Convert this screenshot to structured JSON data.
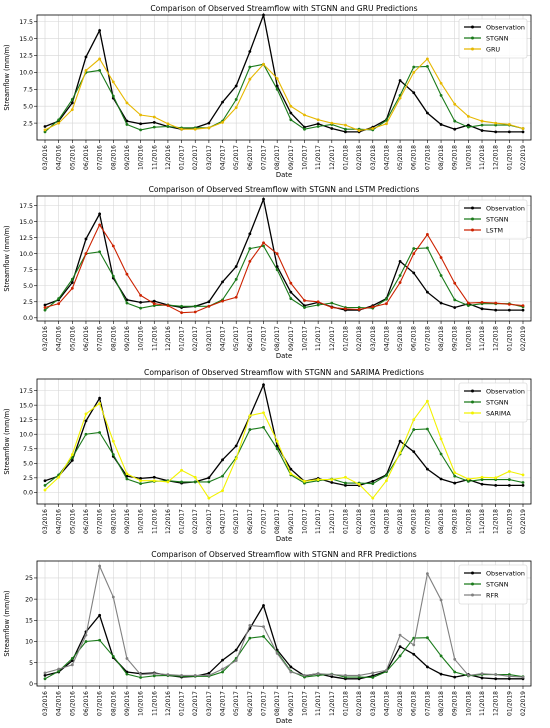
{
  "chart_data": [
    {
      "type": "line",
      "title": "Comparison of Observed Streamflow with STGNN and GRU Predictions",
      "xlabel": "Date",
      "ylabel": "Streamflow (mm/m)",
      "ylim": [
        0,
        18.5
      ],
      "yticks": [
        2.5,
        5.0,
        7.5,
        10.0,
        12.5,
        15.0,
        17.5
      ],
      "grid": true,
      "legend_position": "top-right",
      "categories": [
        "03/2016",
        "04/2016",
        "05/2016",
        "06/2016",
        "07/2016",
        "08/2016",
        "09/2016",
        "10/2016",
        "11/2016",
        "12/2016",
        "01/2017",
        "02/2017",
        "03/2017",
        "04/2017",
        "05/2017",
        "06/2017",
        "07/2017",
        "08/2017",
        "09/2017",
        "10/2017",
        "11/2017",
        "12/2017",
        "01/2018",
        "02/2018",
        "03/2018",
        "04/2018",
        "05/2018",
        "06/2018",
        "07/2018",
        "08/2018",
        "09/2018",
        "10/2018",
        "11/2018",
        "12/2018",
        "01/2019",
        "02/2019"
      ],
      "series": [
        {
          "name": "Observation",
          "color": "#000000",
          "values": [
            2.0,
            2.8,
            5.5,
            12.3,
            16.2,
            6.2,
            2.8,
            2.4,
            2.6,
            2.0,
            1.6,
            1.8,
            2.5,
            5.6,
            8.0,
            13.1,
            18.5,
            8.0,
            4.0,
            1.9,
            2.4,
            1.7,
            1.2,
            1.2,
            1.9,
            3.0,
            8.8,
            7.0,
            4.0,
            2.3,
            1.6,
            2.2,
            1.4,
            1.2,
            1.2,
            1.2
          ]
        },
        {
          "name": "STGNN",
          "color": "#1a7a1a",
          "values": [
            1.2,
            3.0,
            6.0,
            10.0,
            10.3,
            6.5,
            2.3,
            1.5,
            1.9,
            2.0,
            1.8,
            1.8,
            1.8,
            2.8,
            6.0,
            10.8,
            11.2,
            7.5,
            3.0,
            1.6,
            2.0,
            2.3,
            1.6,
            1.6,
            1.5,
            2.9,
            6.6,
            10.8,
            10.9,
            6.6,
            2.8,
            1.9,
            2.2,
            2.2,
            2.2,
            1.7
          ]
        },
        {
          "name": "GRU",
          "color": "#e6b800",
          "values": [
            1.5,
            2.5,
            4.5,
            10.3,
            12.0,
            8.6,
            5.5,
            3.7,
            3.4,
            2.4,
            1.6,
            1.6,
            1.8,
            2.6,
            4.8,
            9.0,
            11.2,
            9.1,
            5.0,
            3.7,
            3.0,
            2.5,
            2.2,
            1.4,
            1.7,
            2.4,
            6.2,
            10.0,
            12.0,
            8.4,
            5.3,
            3.5,
            2.8,
            2.5,
            2.3,
            1.7
          ]
        }
      ]
    },
    {
      "type": "line",
      "title": "Comparison of Observed Streamflow with STGNN and LSTM Predictions",
      "xlabel": "Date",
      "ylabel": "Streamflow (mm/m)",
      "ylim": [
        -0.5,
        19.0
      ],
      "yticks": [
        0.0,
        2.5,
        5.0,
        7.5,
        10.0,
        12.5,
        15.0,
        17.5
      ],
      "grid": true,
      "legend_position": "top-right",
      "categories": [
        "03/2016",
        "04/2016",
        "05/2016",
        "06/2016",
        "07/2016",
        "08/2016",
        "09/2016",
        "10/2016",
        "11/2016",
        "12/2016",
        "01/2017",
        "02/2017",
        "03/2017",
        "04/2017",
        "05/2017",
        "06/2017",
        "07/2017",
        "08/2017",
        "09/2017",
        "10/2017",
        "11/2017",
        "12/2017",
        "01/2018",
        "02/2018",
        "03/2018",
        "04/2018",
        "05/2018",
        "06/2018",
        "07/2018",
        "08/2018",
        "09/2018",
        "10/2018",
        "11/2018",
        "12/2018",
        "01/2019",
        "02/2019"
      ],
      "series": [
        {
          "name": "Observation",
          "color": "#000000",
          "values": [
            2.0,
            2.8,
            5.5,
            12.3,
            16.2,
            6.2,
            2.8,
            2.4,
            2.6,
            2.0,
            1.6,
            1.8,
            2.5,
            5.6,
            8.0,
            13.1,
            18.5,
            8.0,
            4.0,
            1.9,
            2.4,
            1.7,
            1.2,
            1.2,
            1.9,
            3.0,
            8.8,
            7.0,
            4.0,
            2.3,
            1.6,
            2.2,
            1.4,
            1.2,
            1.2,
            1.2
          ]
        },
        {
          "name": "STGNN",
          "color": "#1a7a1a",
          "values": [
            1.2,
            3.0,
            6.0,
            10.0,
            10.3,
            6.5,
            2.3,
            1.5,
            1.9,
            2.0,
            1.8,
            1.8,
            1.8,
            2.8,
            6.0,
            10.8,
            11.2,
            7.5,
            3.0,
            1.6,
            2.0,
            2.3,
            1.6,
            1.6,
            1.5,
            2.9,
            6.6,
            10.8,
            10.9,
            6.6,
            2.8,
            1.9,
            2.2,
            2.2,
            2.2,
            1.7
          ]
        },
        {
          "name": "LSTM",
          "color": "#cc2200",
          "values": [
            1.6,
            2.2,
            4.6,
            10.0,
            14.5,
            11.2,
            6.8,
            3.5,
            2.2,
            1.9,
            0.8,
            0.9,
            1.8,
            2.6,
            3.2,
            8.8,
            11.7,
            10.0,
            5.4,
            2.7,
            2.5,
            1.6,
            1.4,
            1.3,
            1.7,
            2.2,
            5.5,
            10.0,
            13.0,
            9.4,
            5.4,
            2.3,
            2.4,
            2.3,
            2.1,
            1.9
          ]
        }
      ]
    },
    {
      "type": "line",
      "title": "Comparison of Observed Streamflow with STGNN and SARIMA Predictions",
      "xlabel": "Date",
      "ylabel": "Streamflow (mm/m)",
      "ylim": [
        -2.0,
        19.5
      ],
      "yticks": [
        0.0,
        2.5,
        5.0,
        7.5,
        10.0,
        12.5,
        15.0,
        17.5
      ],
      "grid": true,
      "legend_position": "top-right",
      "categories": [
        "03/2016",
        "04/2016",
        "05/2016",
        "06/2016",
        "07/2016",
        "08/2016",
        "09/2016",
        "10/2016",
        "11/2016",
        "12/2016",
        "01/2017",
        "02/2017",
        "03/2017",
        "04/2017",
        "05/2017",
        "06/2017",
        "07/2017",
        "08/2017",
        "09/2017",
        "10/2017",
        "11/2017",
        "12/2017",
        "01/2018",
        "02/2018",
        "03/2018",
        "04/2018",
        "05/2018",
        "06/2018",
        "07/2018",
        "08/2018",
        "09/2018",
        "10/2018",
        "11/2018",
        "12/2018",
        "01/2019",
        "02/2019"
      ],
      "series": [
        {
          "name": "Observation",
          "color": "#000000",
          "values": [
            2.0,
            2.8,
            5.5,
            12.3,
            16.2,
            6.2,
            2.8,
            2.4,
            2.6,
            2.0,
            1.6,
            1.8,
            2.5,
            5.6,
            8.0,
            13.1,
            18.5,
            8.0,
            4.0,
            1.9,
            2.4,
            1.7,
            1.2,
            1.2,
            1.9,
            3.0,
            8.8,
            7.0,
            4.0,
            2.3,
            1.6,
            2.2,
            1.4,
            1.2,
            1.2,
            1.2
          ]
        },
        {
          "name": "STGNN",
          "color": "#1a7a1a",
          "values": [
            1.2,
            3.0,
            6.0,
            10.0,
            10.3,
            6.5,
            2.3,
            1.5,
            1.9,
            2.0,
            1.8,
            1.8,
            1.8,
            2.8,
            6.0,
            10.8,
            11.2,
            7.5,
            3.0,
            1.6,
            2.0,
            2.3,
            1.6,
            1.6,
            1.5,
            2.9,
            6.6,
            10.8,
            10.9,
            6.6,
            2.8,
            1.9,
            2.2,
            2.2,
            2.2,
            1.7
          ]
        },
        {
          "name": "SARIMA",
          "color": "#f2f200",
          "values": [
            0.4,
            2.6,
            6.5,
            13.5,
            15.3,
            8.8,
            3.2,
            2.0,
            2.0,
            1.8,
            3.8,
            2.6,
            -1.0,
            0.3,
            5.8,
            13.2,
            13.7,
            8.8,
            3.2,
            1.9,
            2.2,
            2.2,
            2.6,
            1.4,
            -1.0,
            2.0,
            6.8,
            12.5,
            15.7,
            9.2,
            3.4,
            2.3,
            2.6,
            2.5,
            3.6,
            3.0
          ]
        }
      ]
    },
    {
      "type": "line",
      "title": "Comparison of Observed Streamflow with STGNN and RFR Predictions",
      "xlabel": "Date",
      "ylabel": "Streamflow (mm/m)",
      "ylim": [
        -0.5,
        29.0
      ],
      "yticks": [
        0,
        5,
        10,
        15,
        20,
        25
      ],
      "grid": true,
      "legend_position": "top-right",
      "categories": [
        "03/2016",
        "04/2016",
        "05/2016",
        "06/2016",
        "07/2016",
        "08/2016",
        "09/2016",
        "10/2016",
        "11/2016",
        "12/2016",
        "01/2017",
        "02/2017",
        "03/2017",
        "04/2017",
        "05/2017",
        "06/2017",
        "07/2017",
        "08/2017",
        "09/2017",
        "10/2017",
        "11/2017",
        "12/2017",
        "01/2018",
        "02/2018",
        "03/2018",
        "04/2018",
        "05/2018",
        "06/2018",
        "07/2018",
        "08/2018",
        "09/2018",
        "10/2018",
        "11/2018",
        "12/2018",
        "01/2019",
        "02/2019"
      ],
      "series": [
        {
          "name": "Observation",
          "color": "#000000",
          "values": [
            2.0,
            2.8,
            5.5,
            12.3,
            16.2,
            6.2,
            2.8,
            2.4,
            2.6,
            2.0,
            1.6,
            1.8,
            2.5,
            5.6,
            8.0,
            13.1,
            18.5,
            8.0,
            4.0,
            1.9,
            2.4,
            1.7,
            1.2,
            1.2,
            1.9,
            3.0,
            8.8,
            7.0,
            4.0,
            2.3,
            1.6,
            2.2,
            1.4,
            1.2,
            1.2,
            1.2
          ]
        },
        {
          "name": "STGNN",
          "color": "#1a7a1a",
          "values": [
            1.2,
            3.0,
            6.0,
            10.0,
            10.3,
            6.5,
            2.3,
            1.5,
            1.9,
            2.0,
            1.8,
            1.8,
            1.8,
            2.8,
            6.0,
            10.8,
            11.2,
            7.5,
            3.0,
            1.6,
            2.0,
            2.3,
            1.6,
            1.6,
            1.5,
            2.9,
            6.6,
            10.8,
            10.9,
            6.6,
            2.8,
            1.9,
            2.2,
            2.2,
            2.2,
            1.7
          ]
        },
        {
          "name": "RFR",
          "color": "#808080",
          "values": [
            2.6,
            3.5,
            4.5,
            11.5,
            27.8,
            20.5,
            6.0,
            2.2,
            2.4,
            2.2,
            2.0,
            2.0,
            2.0,
            3.5,
            5.5,
            13.8,
            13.5,
            7.2,
            2.8,
            2.0,
            2.4,
            2.2,
            2.0,
            2.0,
            2.6,
            3.2,
            11.5,
            9.2,
            26.0,
            19.8,
            5.8,
            2.0,
            2.4,
            2.2,
            1.8,
            1.6
          ]
        }
      ]
    }
  ]
}
